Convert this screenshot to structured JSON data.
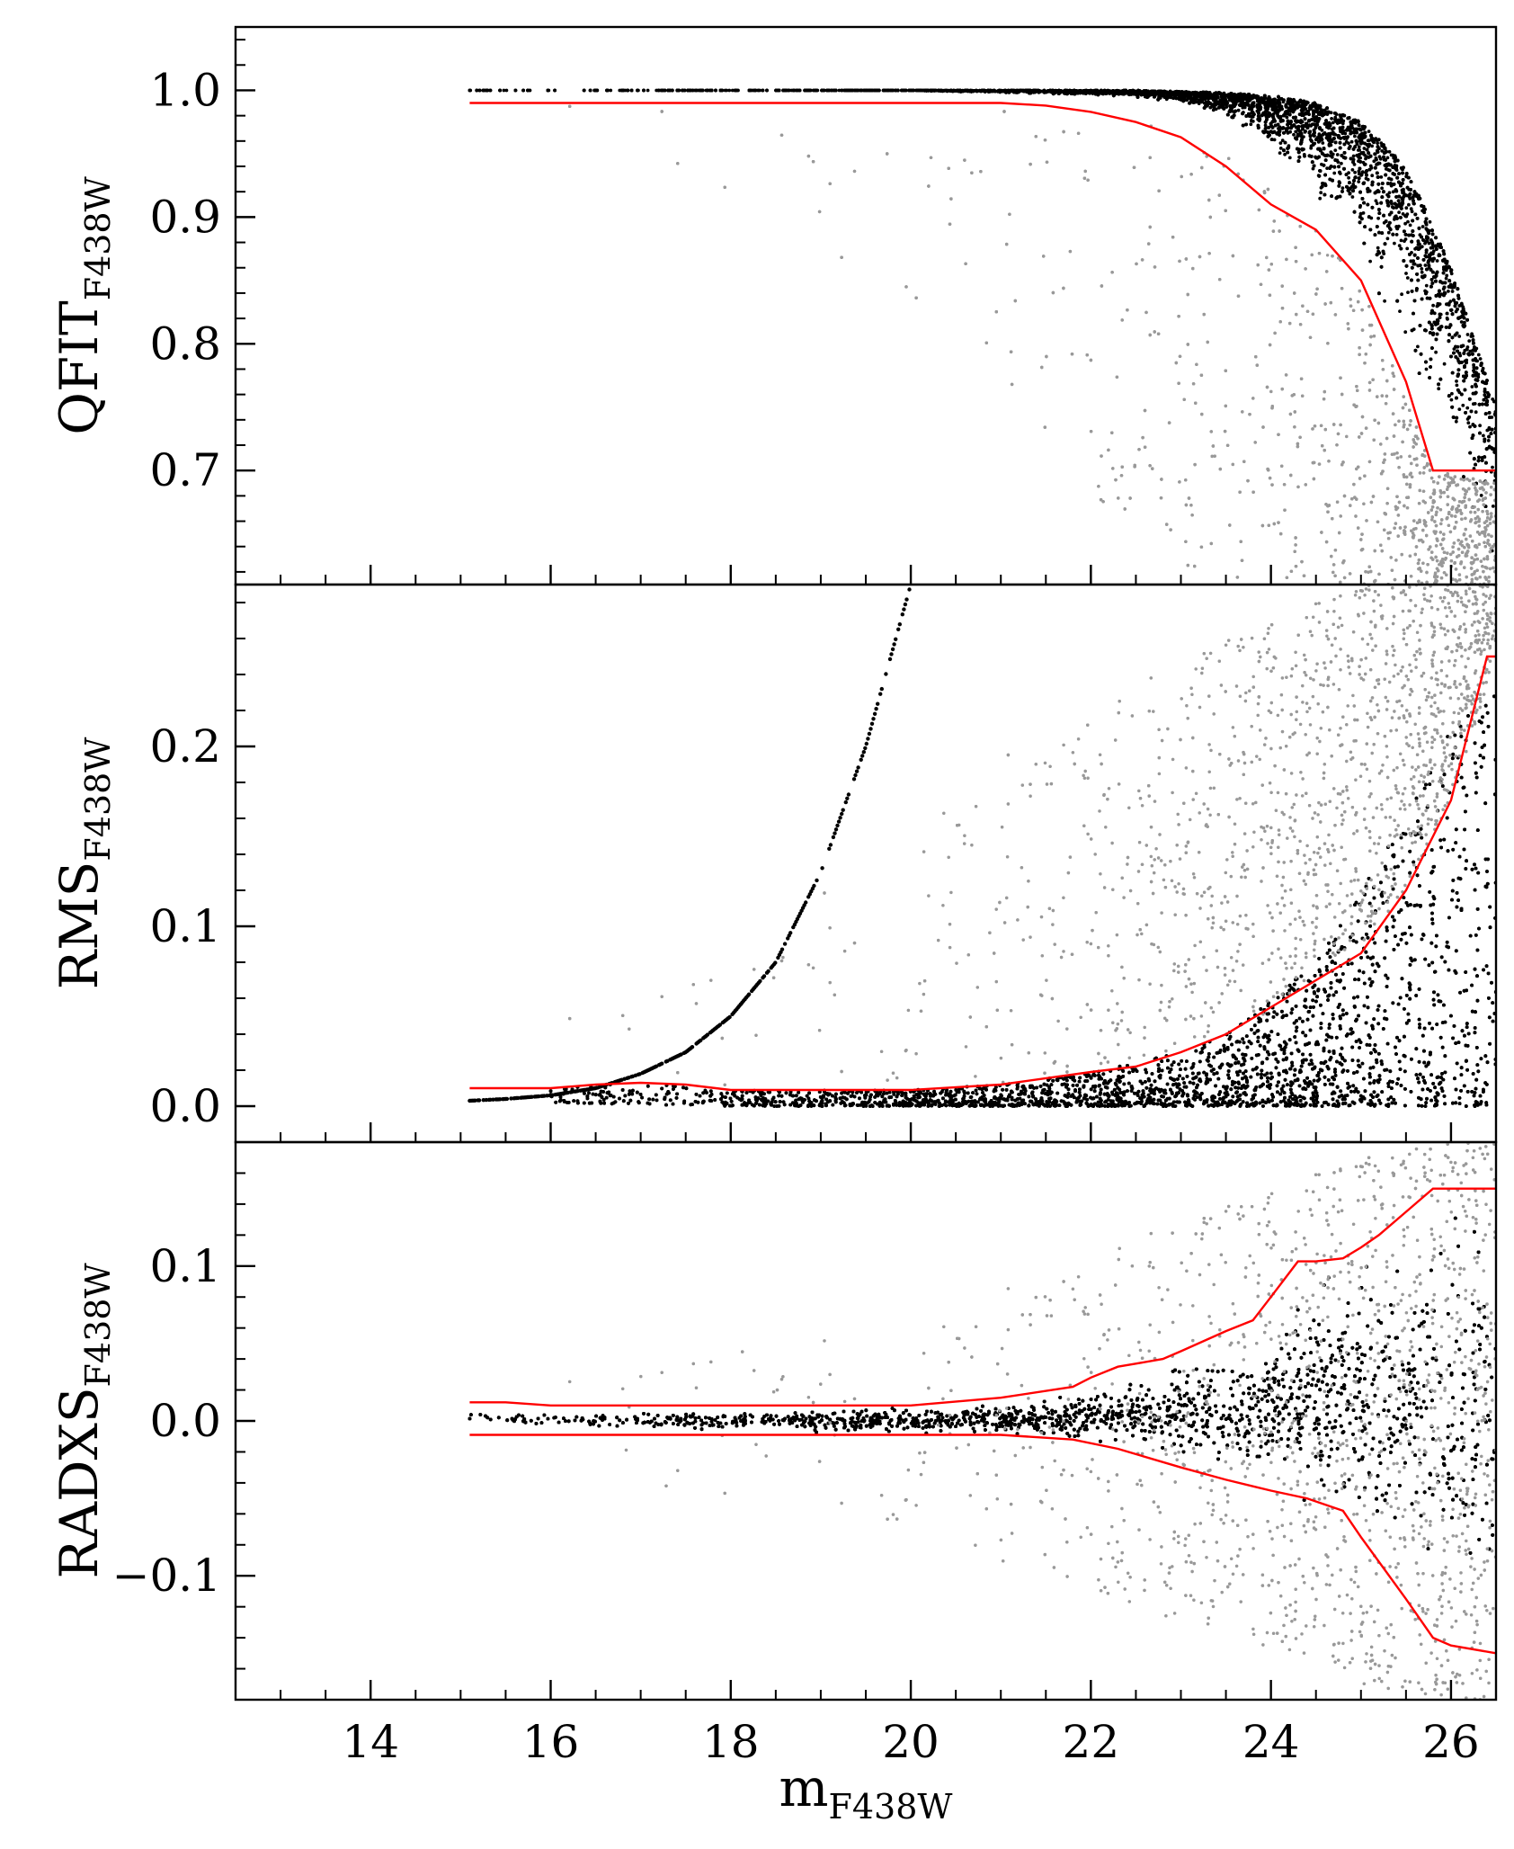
{
  "chart_data": [
    {
      "type": "scatter",
      "panel": "top",
      "ylabel": "QFIT",
      "ylabel_subscript": "F438W",
      "xlim": [
        12.5,
        26.5
      ],
      "ylim": [
        0.61,
        1.05
      ],
      "yticks": [
        0.7,
        0.8,
        0.9,
        1.0
      ],
      "ytick_labels": [
        "0.7",
        "0.8",
        "0.9",
        "1.0"
      ],
      "series": [
        {
          "role": "selected",
          "color": "#000000",
          "envelope": {
            "x": [
              15.1,
              16,
              17,
              18,
              19,
              20,
              21,
              22,
              22.5,
              23,
              23.5,
              24,
              24.5,
              25,
              25.5,
              26,
              26.5
            ],
            "lower": [
              1.0,
              1.0,
              1.0,
              1.0,
              1.0,
              1.0,
              0.998,
              0.996,
              0.994,
              0.99,
              0.975,
              0.95,
              0.91,
              0.86,
              0.78,
              0.7,
              0.61
            ],
            "upper": [
              1.0,
              1.0,
              1.0,
              1.0,
              1.0,
              1.0,
              1.0,
              1.0,
              1.0,
              0.999,
              0.998,
              0.996,
              0.99,
              0.975,
              0.94,
              0.86,
              0.75
            ]
          },
          "density": [
            0.05,
            0.05,
            0.08,
            0.12,
            0.2,
            0.35,
            0.55,
            0.8,
            1.0,
            1.2,
            1.4,
            1.6,
            1.7,
            1.7,
            1.6,
            1.4,
            1.2
          ]
        },
        {
          "role": "rejected",
          "color": "#999999",
          "envelope": {
            "x": [
              16,
              18,
              20,
              21,
              22,
              23,
              24,
              25,
              25.8,
              26.5
            ],
            "lower": [
              0.97,
              0.92,
              0.82,
              0.75,
              0.68,
              0.62,
              0.61,
              0.61,
              0.61,
              0.61
            ],
            "upper": [
              0.99,
              0.99,
              0.99,
              0.99,
              0.985,
              0.97,
              0.93,
              0.85,
              0.7,
              0.69
            ]
          },
          "density": [
            0.005,
            0.01,
            0.03,
            0.06,
            0.12,
            0.25,
            0.45,
            0.8,
            1.5,
            2.0
          ]
        },
        {
          "role": "selection-limit",
          "color": "#ff0000",
          "style": "line",
          "x": [
            15.1,
            16,
            18,
            20,
            21,
            21.5,
            22,
            22.5,
            23,
            23.5,
            24,
            24.5,
            25,
            25.5,
            25.8,
            26,
            26.5
          ],
          "y": [
            0.99,
            0.99,
            0.99,
            0.99,
            0.99,
            0.988,
            0.983,
            0.975,
            0.963,
            0.94,
            0.91,
            0.89,
            0.85,
            0.77,
            0.7,
            0.7,
            0.7
          ]
        }
      ]
    },
    {
      "type": "scatter",
      "panel": "middle",
      "ylabel": "RMS",
      "ylabel_subscript": "F438W",
      "xlim": [
        12.5,
        26.5
      ],
      "ylim": [
        -0.02,
        0.29
      ],
      "yticks": [
        0.0,
        0.1,
        0.2
      ],
      "ytick_labels": [
        "0.0",
        "0.1",
        "0.2"
      ],
      "series": [
        {
          "role": "selected",
          "color": "#000000",
          "envelope": {
            "x": [
              16,
              17,
              18,
              19,
              20,
              21,
              22,
              23,
              23.5,
              24,
              24.5,
              25,
              25.5,
              26,
              26.5
            ],
            "lower": [
              0.002,
              0.001,
              0.0,
              0.0,
              0.0,
              0.0,
              0.0,
              0.0,
              0.0,
              0.0,
              0.0,
              0.0,
              0.0,
              0.0,
              0.0
            ],
            "upper": [
              0.013,
              0.013,
              0.009,
              0.009,
              0.009,
              0.012,
              0.019,
              0.03,
              0.04,
              0.06,
              0.08,
              0.12,
              0.16,
              0.21,
              0.23
            ]
          },
          "density": [
            0.15,
            0.3,
            0.4,
            0.55,
            0.7,
            0.85,
            1.0,
            1.15,
            1.3,
            1.45,
            1.6,
            1.6,
            1.5,
            1.3,
            1.1
          ]
        },
        {
          "role": "sequence",
          "color": "#000000",
          "x": [
            15.1,
            15.5,
            16,
            16.5,
            17,
            17.5,
            18,
            18.5,
            19,
            19.5,
            20
          ],
          "y": [
            0.003,
            0.004,
            0.006,
            0.01,
            0.018,
            0.03,
            0.05,
            0.08,
            0.13,
            0.2,
            0.29
          ]
        },
        {
          "role": "rejected",
          "color": "#999999",
          "envelope": {
            "x": [
              16,
              18,
              20,
              21,
              22,
              23,
              24,
              25,
              25.5,
              26,
              26.5
            ],
            "lower": [
              0.011,
              0.01,
              0.01,
              0.013,
              0.02,
              0.032,
              0.05,
              0.09,
              0.12,
              0.17,
              0.25
            ],
            "upper": [
              0.05,
              0.08,
              0.17,
              0.2,
              0.22,
              0.25,
              0.27,
              0.29,
              0.29,
              0.29,
              0.29
            ]
          },
          "density": [
            0.01,
            0.02,
            0.06,
            0.1,
            0.2,
            0.4,
            0.7,
            1.0,
            1.2,
            1.2,
            1.0
          ]
        },
        {
          "role": "selection-limit",
          "color": "#ff0000",
          "style": "line",
          "x": [
            15.1,
            16,
            16.5,
            17,
            17.5,
            18,
            19,
            20,
            21,
            22,
            22.5,
            23,
            23.5,
            24,
            24.5,
            25,
            25.5,
            26,
            26.4,
            26.5
          ],
          "y": [
            0.01,
            0.01,
            0.012,
            0.013,
            0.012,
            0.009,
            0.009,
            0.009,
            0.012,
            0.019,
            0.022,
            0.03,
            0.04,
            0.055,
            0.07,
            0.085,
            0.12,
            0.17,
            0.25,
            0.25
          ]
        }
      ]
    },
    {
      "type": "scatter",
      "panel": "bottom",
      "ylabel": "RADXS",
      "ylabel_subscript": "F438W",
      "xlabel": "m",
      "xlabel_subscript": "F438W",
      "xlim": [
        12.5,
        26.5
      ],
      "ylim": [
        -0.18,
        0.18
      ],
      "yticks": [
        -0.1,
        0.0,
        0.1
      ],
      "ytick_labels": [
        "−0.1",
        "0.0",
        "0.1"
      ],
      "xticks": [
        14,
        16,
        18,
        20,
        22,
        24,
        26
      ],
      "xtick_labels": [
        "14",
        "16",
        "18",
        "20",
        "22",
        "24",
        "26"
      ],
      "series": [
        {
          "role": "selected",
          "color": "#000000",
          "envelope": {
            "x": [
              15.1,
              16,
              17,
              18,
              19,
              20,
              21,
              22,
              23,
              24,
              24.5,
              25,
              25.5,
              26,
              26.5
            ],
            "lower": [
              -0.004,
              -0.005,
              -0.006,
              -0.007,
              -0.008,
              -0.009,
              -0.01,
              -0.015,
              -0.03,
              -0.045,
              -0.06,
              -0.08,
              -0.1,
              -0.14,
              -0.15
            ],
            "upper": [
              0.006,
              0.006,
              0.007,
              0.008,
              0.009,
              0.01,
              0.012,
              0.02,
              0.04,
              0.065,
              0.1,
              0.11,
              0.13,
              0.15,
              0.15
            ]
          },
          "density": [
            0.1,
            0.25,
            0.45,
            0.6,
            0.75,
            0.9,
            1.05,
            1.2,
            1.35,
            1.5,
            1.6,
            1.6,
            1.5,
            1.3,
            1.1
          ]
        },
        {
          "role": "rejected",
          "color": "#999999",
          "envelope": {
            "x": [
              16,
              18,
              20,
              21,
              22,
              23,
              24,
              25,
              26,
              26.5
            ],
            "lower": [
              -0.03,
              -0.05,
              -0.07,
              -0.09,
              -0.11,
              -0.13,
              -0.15,
              -0.17,
              -0.18,
              -0.18
            ],
            "upper": [
              0.03,
              0.05,
              0.07,
              0.09,
              0.11,
              0.13,
              0.15,
              0.17,
              0.18,
              0.18
            ]
          },
          "density": [
            0.01,
            0.02,
            0.05,
            0.08,
            0.15,
            0.3,
            0.5,
            0.8,
            1.0,
            1.0
          ]
        },
        {
          "role": "selection-limit-upper",
          "color": "#ff0000",
          "style": "line",
          "x": [
            15.1,
            15.5,
            16,
            18,
            20,
            21,
            21.8,
            22,
            22.3,
            22.5,
            22.8,
            23,
            23.5,
            23.8,
            24,
            24.3,
            24.5,
            24.8,
            25,
            25.2,
            25.5,
            25.8,
            26,
            26.5
          ],
          "y": [
            0.012,
            0.012,
            0.01,
            0.01,
            0.01,
            0.015,
            0.022,
            0.028,
            0.035,
            0.037,
            0.04,
            0.045,
            0.058,
            0.065,
            0.08,
            0.103,
            0.103,
            0.105,
            0.112,
            0.12,
            0.135,
            0.15,
            0.15,
            0.15
          ]
        },
        {
          "role": "selection-limit-lower",
          "color": "#ff0000",
          "style": "line",
          "x": [
            15.1,
            16,
            18,
            20,
            21,
            21.8,
            22.3,
            23,
            23.5,
            24,
            24.4,
            24.8,
            25,
            25.5,
            25.8,
            26,
            26.5
          ],
          "y": [
            -0.009,
            -0.009,
            -0.009,
            -0.009,
            -0.009,
            -0.012,
            -0.018,
            -0.03,
            -0.038,
            -0.045,
            -0.05,
            -0.058,
            -0.075,
            -0.115,
            -0.14,
            -0.145,
            -0.15
          ]
        }
      ]
    }
  ]
}
